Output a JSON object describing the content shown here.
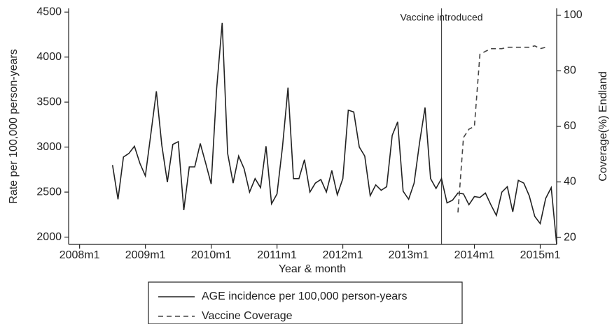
{
  "chart_data": {
    "type": "line",
    "x_label": "Year & month",
    "y_label": "Rate per 100,000 person-years",
    "y2_label": "Coverage(%) Endland",
    "xlim": [
      "2007m11",
      "2015m4"
    ],
    "xticks": [
      "2008m1",
      "2009m1",
      "2010m1",
      "2011m1",
      "2012m1",
      "2013m1",
      "2014m1",
      "2015m1"
    ],
    "ylim": [
      1919,
      4541
    ],
    "yticks": [
      2000,
      2500,
      3000,
      3500,
      4000,
      4500
    ],
    "y2lim": [
      17.5,
      102.5
    ],
    "y2ticks": [
      20,
      40,
      60,
      80,
      100
    ],
    "annotation": {
      "x": "2013m7",
      "label": "Vaccine introduced"
    },
    "legend": "bottom",
    "series": [
      {
        "name": "AGE incidence per 100,000 person-years",
        "color": "#222222",
        "dash": "solid",
        "x": [
          "2008m7",
          "2008m8",
          "2008m9",
          "2008m10",
          "2008m11",
          "2008m12",
          "2009m1",
          "2009m2",
          "2009m3",
          "2009m4",
          "2009m5",
          "2009m6",
          "2009m7",
          "2009m8",
          "2009m9",
          "2009m10",
          "2009m11",
          "2009m12",
          "2010m1",
          "2010m2",
          "2010m3",
          "2010m4",
          "2010m5",
          "2010m6",
          "2010m7",
          "2010m8",
          "2010m9",
          "2010m10",
          "2010m11",
          "2010m12",
          "2011m1",
          "2011m2",
          "2011m3",
          "2011m4",
          "2011m5",
          "2011m6",
          "2011m7",
          "2011m8",
          "2011m9",
          "2011m10",
          "2011m11",
          "2011m12",
          "2012m1",
          "2012m2",
          "2012m3",
          "2012m4",
          "2012m5",
          "2012m6",
          "2012m7",
          "2012m8",
          "2012m9",
          "2012m10",
          "2012m11",
          "2012m12",
          "2013m1",
          "2013m2",
          "2013m3",
          "2013m4",
          "2013m5",
          "2013m6",
          "2013m7",
          "2013m8",
          "2013m9",
          "2013m10",
          "2013m11",
          "2013m12",
          "2014m1",
          "2014m2",
          "2014m3",
          "2014m4",
          "2014m5",
          "2014m6",
          "2014m7",
          "2014m8",
          "2014m9",
          "2014m10",
          "2014m11",
          "2014m12",
          "2015m1",
          "2015m2",
          "2015m3",
          "2015m4"
        ],
        "values": [
          2800,
          2420,
          2890,
          2930,
          3010,
          2820,
          2680,
          3150,
          3620,
          3020,
          2610,
          3030,
          3060,
          2300,
          2780,
          2780,
          3040,
          2820,
          2590,
          3650,
          4380,
          2930,
          2600,
          2900,
          2760,
          2500,
          2650,
          2550,
          3010,
          2370,
          2480,
          3000,
          3660,
          2650,
          2650,
          2860,
          2500,
          2600,
          2640,
          2500,
          2740,
          2470,
          2650,
          3410,
          3390,
          3000,
          2900,
          2460,
          2580,
          2520,
          2560,
          3130,
          3280,
          2510,
          2420,
          2600,
          3050,
          3440,
          2650,
          2540,
          2650,
          2380,
          2410,
          2490,
          2480,
          2360,
          2450,
          2440,
          2490,
          2360,
          2240,
          2500,
          2560,
          2280,
          2630,
          2600,
          2460,
          2230,
          2150,
          2430,
          2550,
          1920
        ]
      },
      {
        "name": "Vaccine Coverage",
        "color": "#444444",
        "dash": "dashed",
        "axis": "y2",
        "x": [
          "2013m10",
          "2013m11",
          "2013m12",
          "2014m1",
          "2014m2",
          "2014m3",
          "2014m4",
          "2014m5",
          "2014m6",
          "2014m7",
          "2014m8",
          "2014m9",
          "2014m10",
          "2014m11",
          "2014m12",
          "2015m1",
          "2015m2"
        ],
        "values": [
          29,
          56,
          59,
          60,
          86,
          87,
          88,
          88,
          88,
          88.5,
          88.5,
          88.5,
          88.5,
          88.5,
          89,
          88,
          88.5
        ]
      }
    ]
  }
}
